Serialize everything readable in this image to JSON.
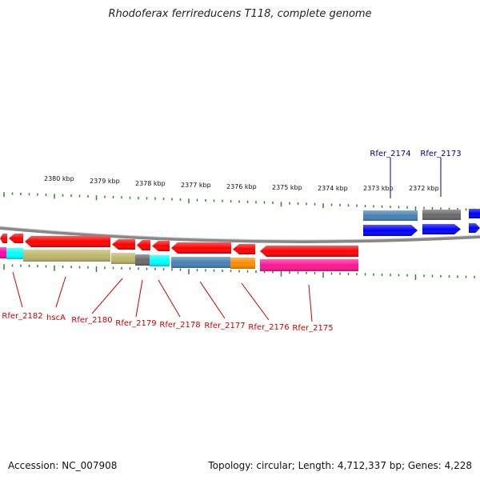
{
  "title": "Rhodoferax ferrireducens T118, complete genome",
  "footer": {
    "accession": "Accession: NC_007908",
    "summary": "Topology: circular; Length: 4,712,337 bp; Genes: 4,228"
  },
  "scale_labels": [
    "2380 kbp",
    "2379 kbp",
    "2378 kbp",
    "2377 kbp",
    "2376 kbp",
    "2375 kbp",
    "2374 kbp",
    "2373 kbp",
    "2372 kbp"
  ],
  "gene_labels_top": [
    "Rfer_2174",
    "Rfer_2173"
  ],
  "gene_labels_bottom": [
    "Rfer_2182",
    "hscA",
    "Rfer_2180",
    "Rfer_2179",
    "Rfer_2178",
    "Rfer_2177",
    "Rfer_2176",
    "Rfer_2175"
  ],
  "colors": {
    "forward_cds": "#0000ff",
    "reverse_cds": "#ff0000",
    "label_forward": "#00008b",
    "label_reverse": "#cc0000",
    "ticks": "#228b22",
    "backbone": "#808080",
    "cog_olive": "#bdb76b",
    "cog_cyan": "#00ffff",
    "cog_steel": "#4682b4",
    "cog_gray": "#696969",
    "cog_orange": "#ff8c00",
    "cog_pink": "#ff1493",
    "cog_magenta": "#ff00aa"
  }
}
